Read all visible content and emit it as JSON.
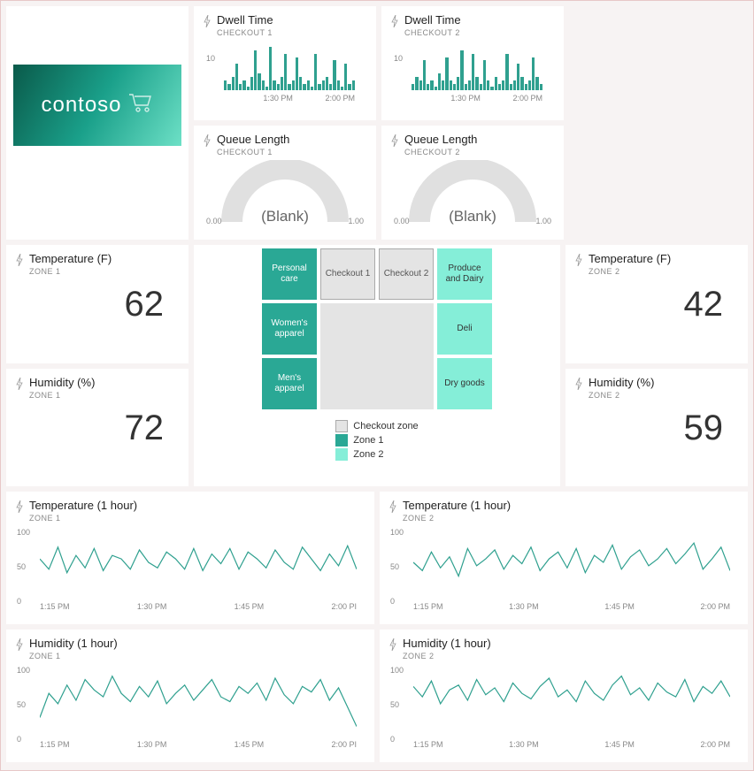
{
  "logo": {
    "text": "contoso"
  },
  "colors": {
    "teal": "#2fa08f",
    "teal_dark": "#28957f",
    "mint": "#7ef0d7",
    "grey": "#d9d9d9",
    "text_muted": "#888",
    "zone1_fill": "#2aa895",
    "zone2_fill": "#85eed8",
    "checkout_fill": "#e4e4e4"
  },
  "dwell1": {
    "title": "Dwell Time",
    "subtitle": "CHECKOUT 1",
    "ylabel": "10",
    "xticks": [
      "1:30 PM",
      "2:00 PM"
    ],
    "bar_color": "#2fa08f",
    "max": 15,
    "values": [
      3,
      2,
      4,
      8,
      2,
      3,
      1,
      4,
      12,
      5,
      3,
      1,
      13,
      3,
      2,
      4,
      11,
      2,
      3,
      10,
      4,
      2,
      3,
      1,
      11,
      2,
      3,
      4,
      2,
      9,
      3,
      1,
      8,
      2,
      3
    ]
  },
  "dwell2": {
    "title": "Dwell Time",
    "subtitle": "CHECKOUT 2",
    "ylabel": "10",
    "xticks": [
      "1:30 PM",
      "2:00 PM"
    ],
    "bar_color": "#2fa08f",
    "max": 15,
    "values": [
      2,
      4,
      3,
      9,
      2,
      3,
      1,
      5,
      3,
      10,
      3,
      2,
      4,
      12,
      2,
      3,
      11,
      4,
      2,
      9,
      3,
      1,
      4,
      2,
      3,
      11,
      2,
      3,
      8,
      4,
      2,
      3,
      10,
      4,
      2
    ]
  },
  "queue1": {
    "title": "Queue Length",
    "subtitle": "CHECKOUT 1",
    "min": "0.00",
    "max": "1.00",
    "value": "(Blank)"
  },
  "queue2": {
    "title": "Queue Length",
    "subtitle": "CHECKOUT 2",
    "min": "0.00",
    "max": "1.00",
    "value": "(Blank)"
  },
  "temp1": {
    "title": "Temperature (F)",
    "subtitle": "ZONE 1",
    "value": "62"
  },
  "hum1": {
    "title": "Humidity (%)",
    "subtitle": "ZONE 1",
    "value": "72"
  },
  "temp2": {
    "title": "Temperature (F)",
    "subtitle": "ZONE 2",
    "value": "42"
  },
  "hum2": {
    "title": "Humidity (%)",
    "subtitle": "ZONE 2",
    "value": "59"
  },
  "floor": {
    "cells": [
      {
        "label": "Personal care",
        "zone": "zone1"
      },
      {
        "label": "Checkout 1",
        "zone": "checkout"
      },
      {
        "label": "Checkout 2",
        "zone": "checkout"
      },
      {
        "label": "Produce and Dairy",
        "zone": "zone2"
      },
      {
        "label": "Women's apparel",
        "zone": "zone1"
      },
      {
        "label": "Deli",
        "zone": "zone2"
      },
      {
        "label": "Men's apparel",
        "zone": "zone1"
      },
      {
        "label": "Dry goods",
        "zone": "zone2"
      }
    ],
    "legend": [
      {
        "label": "Checkout zone",
        "zone": "checkout"
      },
      {
        "label": "Zone 1",
        "zone": "zone1"
      },
      {
        "label": "Zone 2",
        "zone": "zone2"
      }
    ]
  },
  "temp_hr_1": {
    "title": "Temperature (1 hour)",
    "subtitle": "ZONE 1",
    "yticks": [
      "100",
      "50",
      "0"
    ],
    "ylim": [
      0,
      100
    ],
    "xticks": [
      "1:15 PM",
      "1:30 PM",
      "1:45 PM",
      "2:00 PI"
    ],
    "line_color": "#2fa08f",
    "values": [
      55,
      40,
      72,
      35,
      60,
      42,
      70,
      38,
      60,
      55,
      40,
      68,
      50,
      42,
      65,
      55,
      40,
      70,
      38,
      62,
      48,
      70,
      40,
      65,
      55,
      42,
      68,
      50,
      40,
      72,
      55,
      38,
      62,
      45,
      74,
      40
    ]
  },
  "temp_hr_2": {
    "title": "Temperature (1 hour)",
    "subtitle": "ZONE 2",
    "yticks": [
      "100",
      "50",
      "0"
    ],
    "ylim": [
      0,
      100
    ],
    "xticks": [
      "1:15 PM",
      "1:30 PM",
      "1:45 PM",
      "2:00 PM"
    ],
    "line_color": "#2fa08f",
    "values": [
      50,
      38,
      65,
      42,
      58,
      30,
      70,
      45,
      55,
      68,
      40,
      60,
      48,
      72,
      38,
      55,
      65,
      42,
      70,
      35,
      60,
      50,
      75,
      40,
      58,
      68,
      45,
      55,
      70,
      48,
      62,
      78,
      40,
      55,
      72,
      38
    ]
  },
  "hum_hr_1": {
    "title": "Humidity (1 hour)",
    "subtitle": "ZONE 1",
    "yticks": [
      "100",
      "50",
      "0"
    ],
    "ylim": [
      0,
      100
    ],
    "xticks": [
      "1:15 PM",
      "1:30 PM",
      "1:45 PM",
      "2:00 PI"
    ],
    "line_color": "#2fa08f",
    "values": [
      25,
      60,
      45,
      72,
      50,
      80,
      65,
      55,
      85,
      60,
      48,
      70,
      55,
      78,
      45,
      60,
      72,
      50,
      65,
      80,
      55,
      48,
      70,
      60,
      75,
      50,
      82,
      58,
      45,
      70,
      62,
      80,
      50,
      68,
      40,
      12
    ]
  },
  "hum_hr_2": {
    "title": "Humidity (1 hour)",
    "subtitle": "ZONE 2",
    "yticks": [
      "100",
      "50",
      "0"
    ],
    "ylim": [
      0,
      100
    ],
    "xticks": [
      "1:15 PM",
      "1:30 PM",
      "1:45 PM",
      "2:00 PM"
    ],
    "line_color": "#2fa08f",
    "values": [
      70,
      55,
      78,
      45,
      65,
      72,
      50,
      80,
      58,
      68,
      48,
      75,
      60,
      52,
      70,
      82,
      55,
      65,
      48,
      78,
      60,
      50,
      72,
      85,
      58,
      68,
      50,
      75,
      62,
      55,
      80,
      48,
      70,
      60,
      78,
      55
    ]
  }
}
